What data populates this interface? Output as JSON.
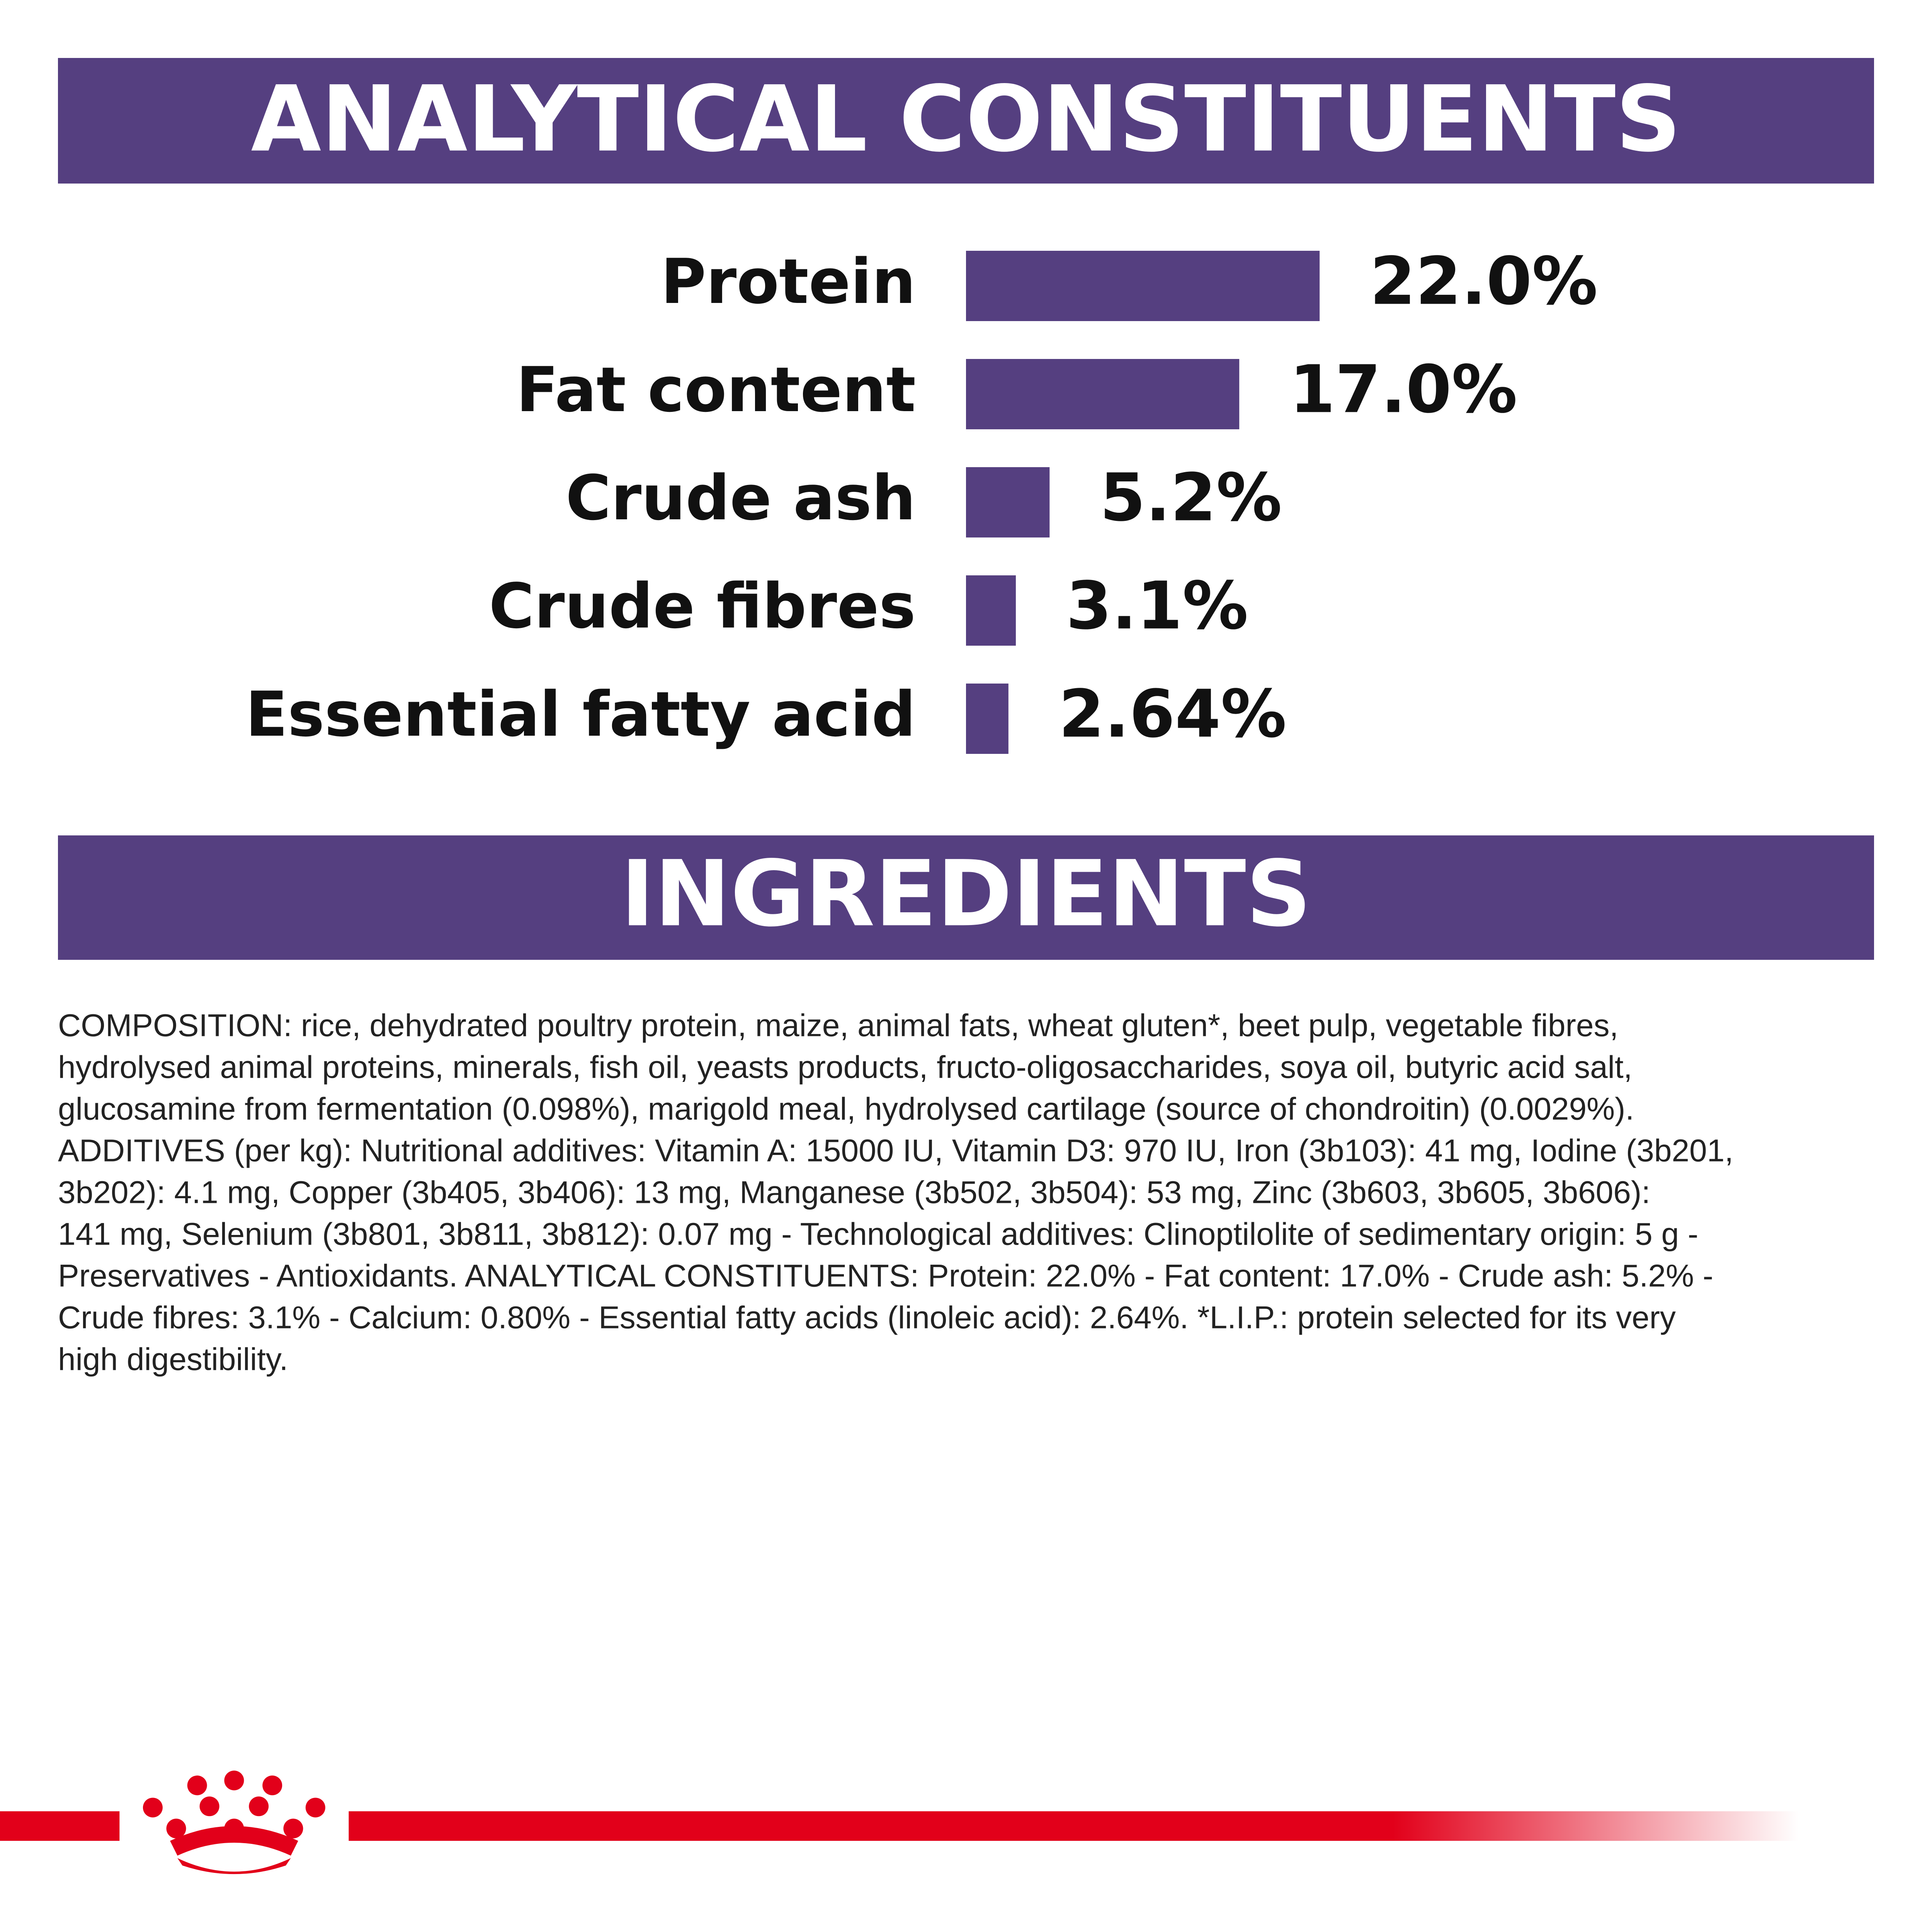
{
  "chart_data": {
    "type": "bar",
    "orientation": "horizontal",
    "title": "ANALYTICAL CONSTITUENTS",
    "categories": [
      "Protein",
      "Fat content",
      "Crude ash",
      "Crude fibres",
      "Essential fatty acid"
    ],
    "values": [
      22.0,
      17.0,
      5.2,
      3.1,
      2.64
    ],
    "value_labels": [
      "22.0%",
      "17.0%",
      "5.2%",
      "3.1%",
      "2.64%"
    ],
    "color": "#553f80"
  },
  "ingredients": {
    "title": "INGREDIENTS",
    "lines": [
      "COMPOSITION: rice, dehydrated poultry protein, maize, animal fats, wheat gluten*, beet pulp, vegetable fibres,",
      "hydrolysed animal proteins, minerals, fish oil, yeasts products, fructo-oligosaccharides, soya oil, butyric acid salt,",
      "glucosamine from fermentation (0.098%), marigold meal, hydrolysed cartilage (source of chondroitin) (0.0029%).",
      "ADDITIVES (per kg): Nutritional additives: Vitamin A: 15000 IU, Vitamin D3: 970 IU, Iron (3b103): 41 mg, Iodine (3b201,",
      "3b202): 4.1 mg, Copper (3b405, 3b406): 13 mg, Manganese (3b502, 3b504): 53 mg, Zinc (3b603, 3b605, 3b606):",
      "141 mg, Selenium (3b801, 3b811, 3b812): 0.07 mg - Technological additives: Clinoptilolite of sedimentary origin: 5 g -",
      "Preservatives - Antioxidants. ANALYTICAL CONSTITUENTS: Protein: 22.0% - Fat content: 17.0% - Crude ash: 5.2% -",
      "Crude fibres: 3.1% - Calcium: 0.80% - Essential fatty acids (linoleic acid): 2.64%. *L.I.P.: protein selected for its very",
      "high digestibility."
    ]
  }
}
